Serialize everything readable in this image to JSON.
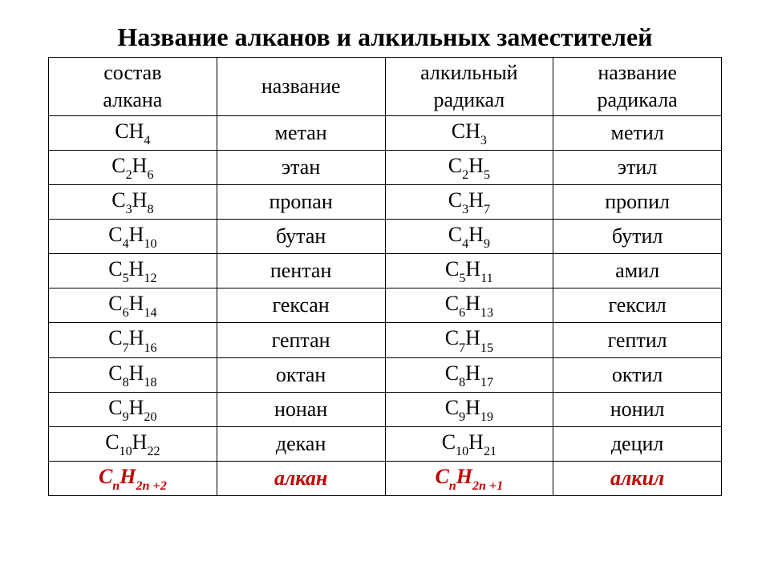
{
  "title": "Название алканов и алкильных заместителей",
  "columns": [
    "состав\nалкана",
    "название",
    "алкильный\nрадикал",
    "название\nрадикала"
  ],
  "column_widths_pct": [
    25,
    25,
    25,
    25
  ],
  "header_fontsize_pt": 20,
  "body_fontsize_pt": 20,
  "title_fontsize_pt": 24,
  "colors": {
    "text": "#000000",
    "border": "#000000",
    "background": "#ffffff",
    "highlight": "#c00000"
  },
  "rows": [
    {
      "alkane_C": 1,
      "alkane_H": 4,
      "alkane_name": "метан",
      "radical_C": 1,
      "radical_H": 3,
      "radical_name": "метил"
    },
    {
      "alkane_C": 2,
      "alkane_H": 6,
      "alkane_name": "этан",
      "radical_C": 2,
      "radical_H": 5,
      "radical_name": "этил"
    },
    {
      "alkane_C": 3,
      "alkane_H": 8,
      "alkane_name": "пропан",
      "radical_C": 3,
      "radical_H": 7,
      "radical_name": "пропил"
    },
    {
      "alkane_C": 4,
      "alkane_H": 10,
      "alkane_name": "бутан",
      "radical_C": 4,
      "radical_H": 9,
      "radical_name": "бутил"
    },
    {
      "alkane_C": 5,
      "alkane_H": 12,
      "alkane_name": "пентан",
      "radical_C": 5,
      "radical_H": 11,
      "radical_name": "амил"
    },
    {
      "alkane_C": 6,
      "alkane_H": 14,
      "alkane_name": "гексан",
      "radical_C": 6,
      "radical_H": 13,
      "radical_name": "гексил"
    },
    {
      "alkane_C": 7,
      "alkane_H": 16,
      "alkane_name": "гептан",
      "radical_C": 7,
      "radical_H": 15,
      "radical_name": "гептил"
    },
    {
      "alkane_C": 8,
      "alkane_H": 18,
      "alkane_name": "октан",
      "radical_C": 8,
      "radical_H": 17,
      "radical_name": "октил"
    },
    {
      "alkane_C": 9,
      "alkane_H": 20,
      "alkane_name": "нонан",
      "radical_C": 9,
      "radical_H": 19,
      "radical_name": "нонил"
    },
    {
      "alkane_C": 10,
      "alkane_H": 22,
      "alkane_name": "декан",
      "radical_C": 10,
      "radical_H": 21,
      "radical_name": "децил"
    }
  ],
  "general_formula": {
    "alkane_C_sub": "n",
    "alkane_H_sub": "2n +2",
    "alkane_name": "алкан",
    "radical_C_sub": "n",
    "radical_H_sub": "2n +1",
    "radical_name": "алкил",
    "color": "#c00000",
    "italic": true,
    "bold": true
  }
}
